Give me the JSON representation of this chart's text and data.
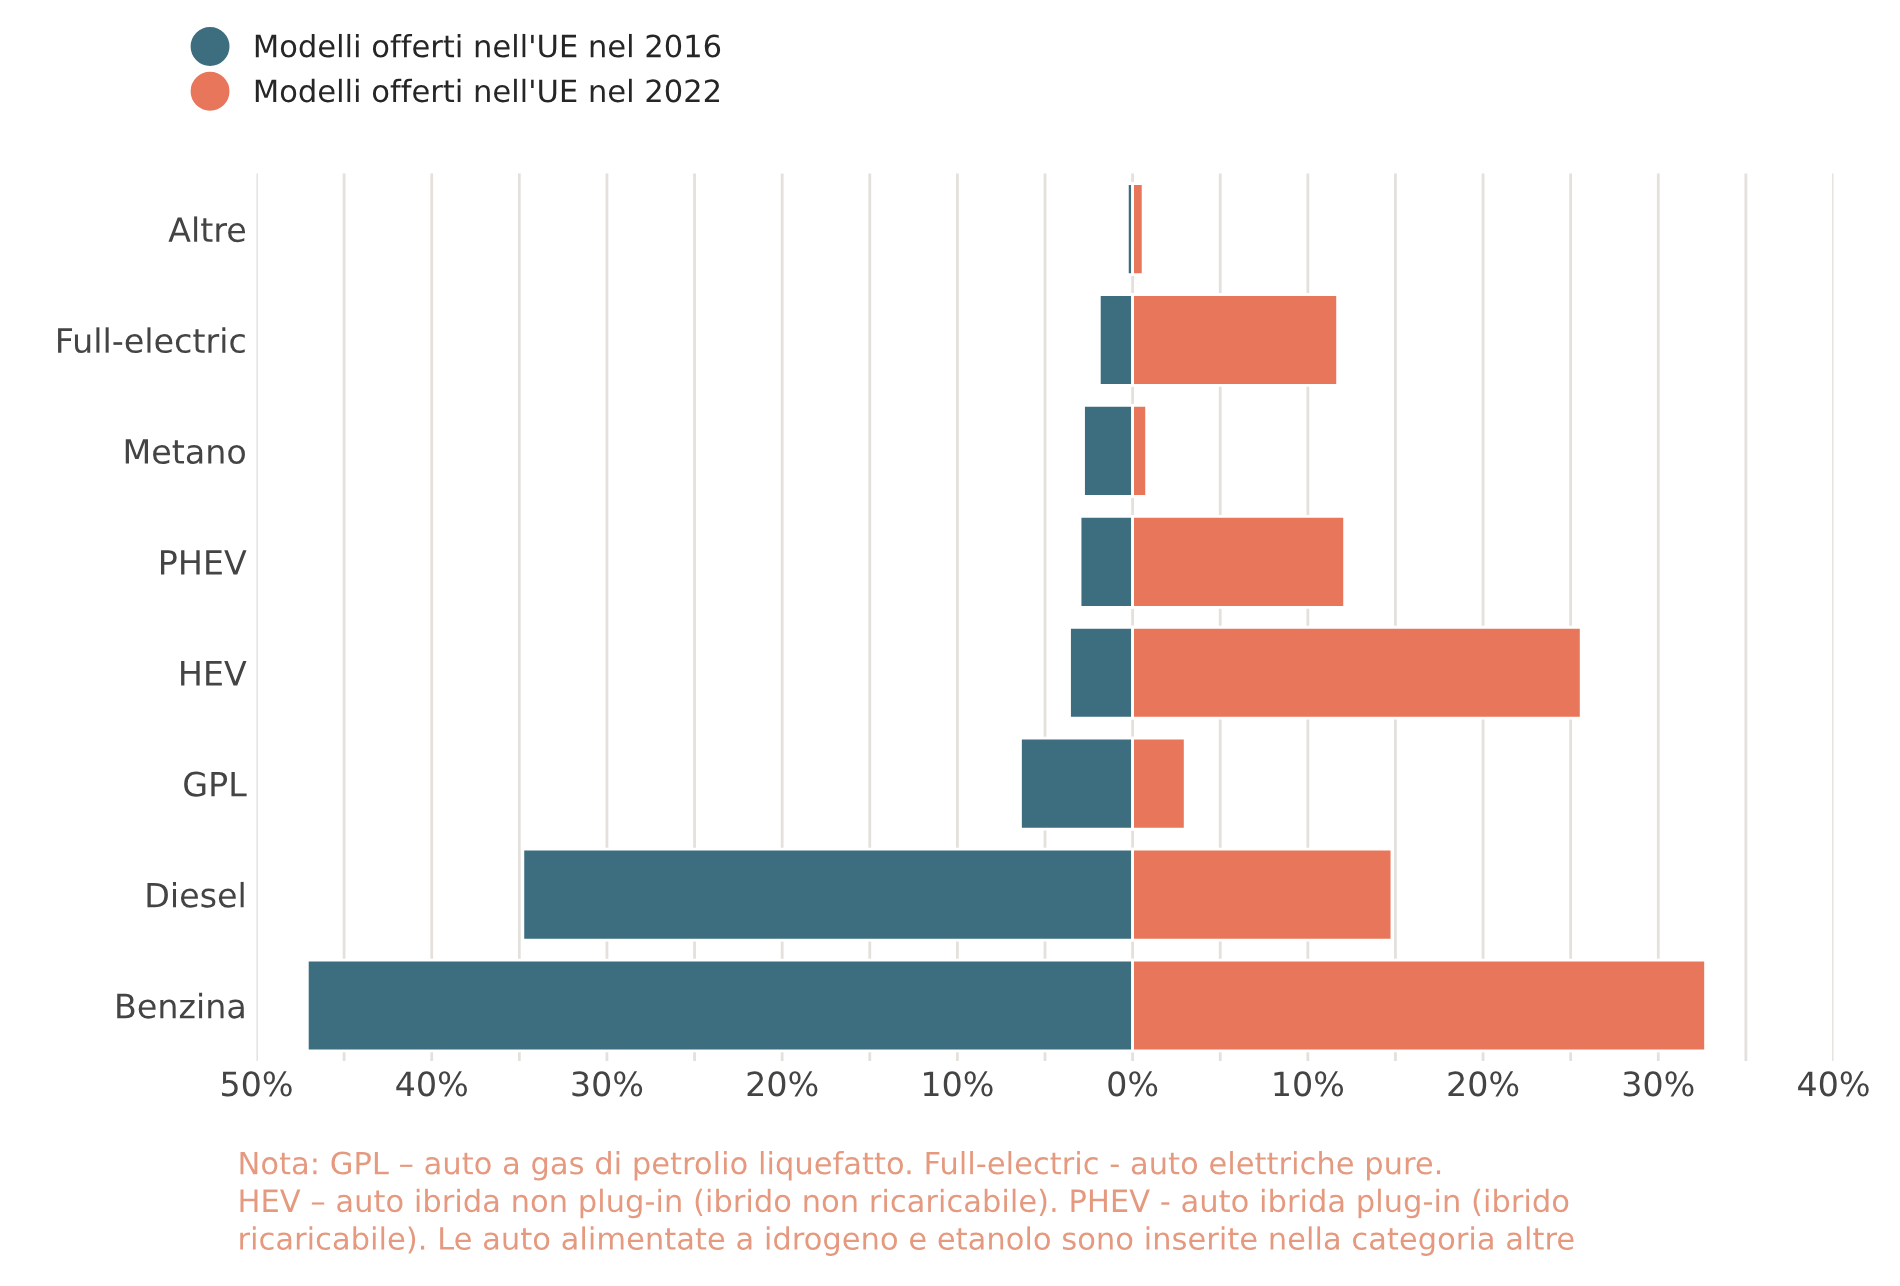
{
  "chart_data": {
    "type": "bar",
    "orientation": "horizontal",
    "stacked": true,
    "categories": [
      "Altre",
      "Full-electric",
      "Metano",
      "PHEV",
      "HEV",
      "GPL",
      "Diesel",
      "Benzina"
    ],
    "series": [
      {
        "name": "Modelli offerti nell'UE nel 2016",
        "color": "#3d6e7f",
        "values": [
          -0.3,
          -1.9,
          -2.8,
          -3.0,
          -3.6,
          -6.4,
          -34.8,
          -47.1
        ]
      },
      {
        "name": "Modelli offerti nell'UE nel 2022",
        "color": "#e8765a",
        "values": [
          0.6,
          11.7,
          0.8,
          12.1,
          25.6,
          3.0,
          14.8,
          32.7
        ]
      }
    ],
    "xlim": [
      -50,
      40
    ],
    "xticks": [
      {
        "value": -50,
        "label": "50%"
      },
      {
        "value": -45,
        "label": null
      },
      {
        "value": -40,
        "label": "40%"
      },
      {
        "value": -35,
        "label": null
      },
      {
        "value": -30,
        "label": "30%"
      },
      {
        "value": -25,
        "label": null
      },
      {
        "value": -20,
        "label": "20%"
      },
      {
        "value": -15,
        "label": null
      },
      {
        "value": -10,
        "label": "10%"
      },
      {
        "value": -5,
        "label": null
      },
      {
        "value": 0,
        "label": "0%"
      },
      {
        "value": 5,
        "label": null
      },
      {
        "value": 10,
        "label": "10%"
      },
      {
        "value": 15,
        "label": null
      },
      {
        "value": 20,
        "label": "20%"
      },
      {
        "value": 25,
        "label": null
      },
      {
        "value": 30,
        "label": "30%"
      },
      {
        "value": 35,
        "label": null
      },
      {
        "value": 40,
        "label": "40%"
      }
    ],
    "grid": "x",
    "legend": "top left",
    "annotations": [
      "Nota: GPL – auto a gas di petrolio liquefatto. Full-electric - auto elettriche pure.\nHEV – auto ibrida non plug-in (ibrido non ricaricabile). PHEV - auto ibrida plug-in (ibrido\nricaricabile). Le auto alimentate a idrogeno e etanolo sono inserite nella categoria altre"
    ]
  }
}
